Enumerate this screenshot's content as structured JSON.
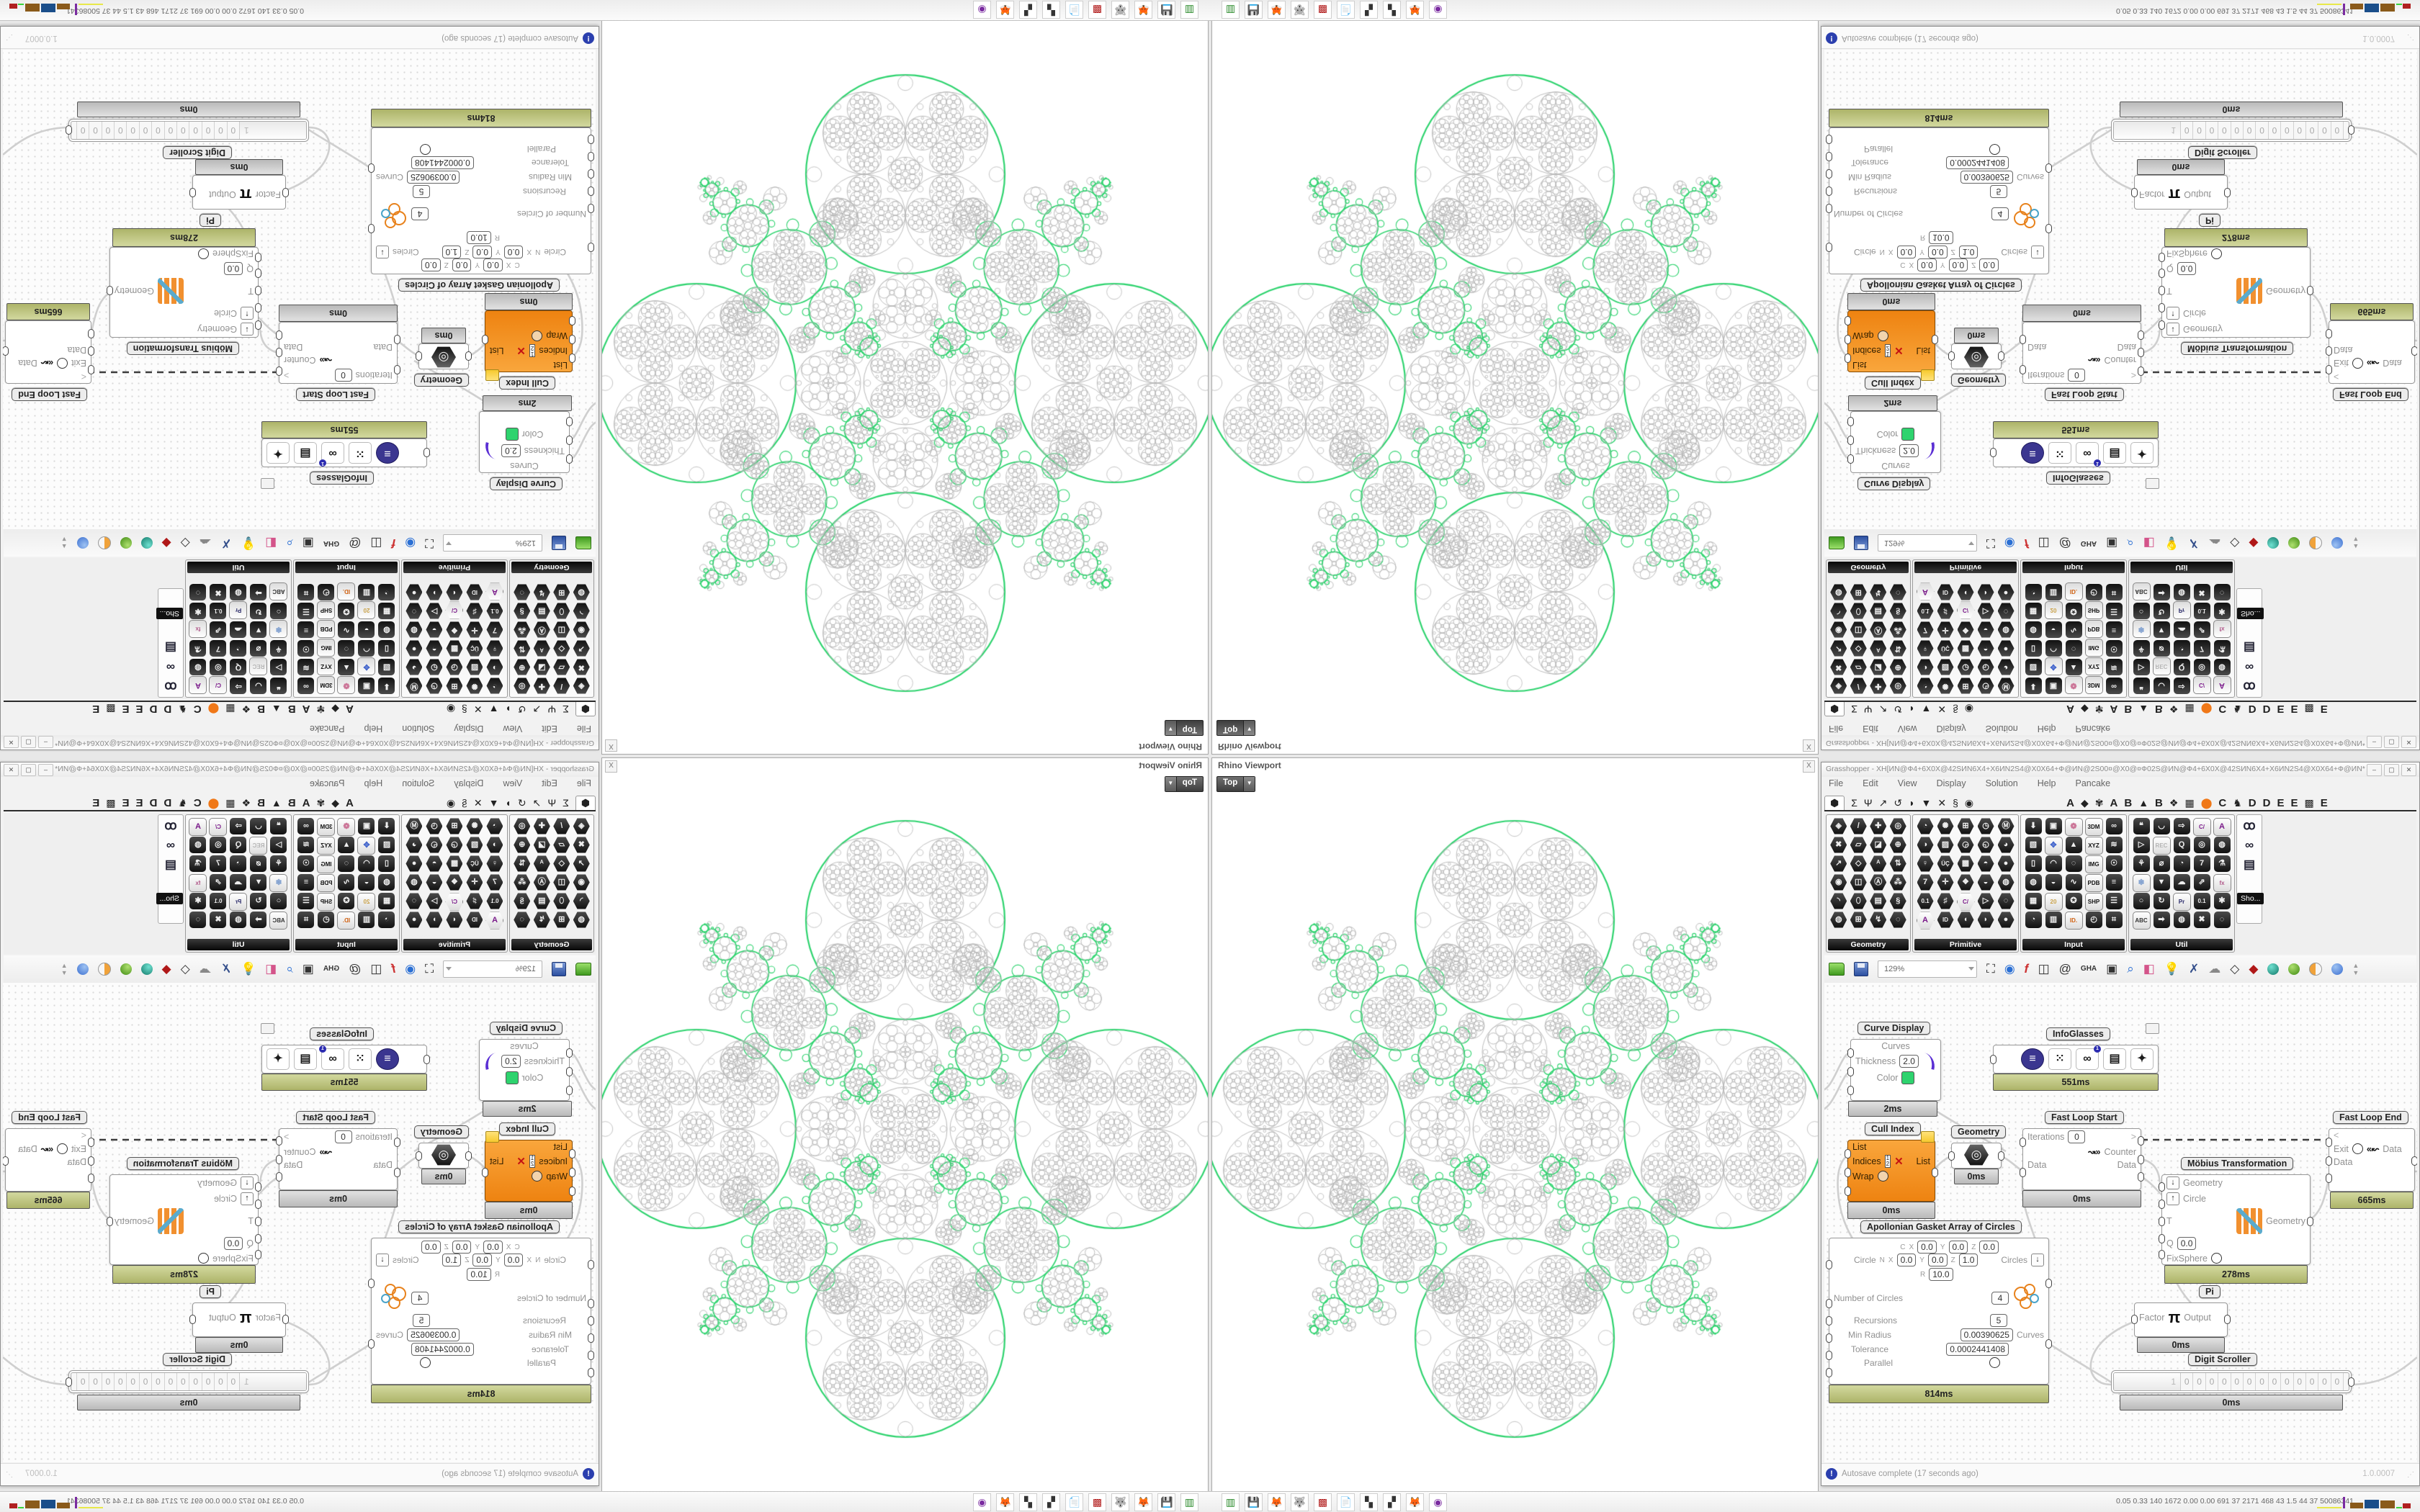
{
  "viewport": {
    "title": "Rhino Viewport",
    "view_button": "Top",
    "close_glyph": "X"
  },
  "gh": {
    "title": "Grasshopper - XH[ИN@Ф4+6X0X@42SИN6X4+X6ИN2S4@X0X64+Ф@ИN@2S00¤@X0@¤Ф02S@ИN@Ф4+6X0X@42SИN6X4+X6ИN2S4@X0X64+Ф@ИN*",
    "min": "–",
    "max": "▢",
    "close": "✕",
    "menu": [
      "File",
      "Edit",
      "View",
      "Display",
      "Solution",
      "Help",
      "Pancake"
    ],
    "tabs": [
      "⬢",
      "Σ",
      "Ψ",
      "↗",
      "↺",
      "◗",
      "▼",
      "✕",
      "§",
      "◉",
      "A",
      "◆",
      "✾",
      "A",
      "B",
      "▲",
      "B",
      "❖",
      "▦",
      "⬤",
      "C",
      "♞",
      "D",
      "D",
      "E",
      "E",
      "▩",
      "E"
    ],
    "palettes": [
      "Geometry",
      "Primitive",
      "Input",
      "Util"
    ],
    "palette_tooltip": "Sho...",
    "zoom_level": "129%",
    "autosave": "Autosave complete (17 seconds ago)",
    "version": "1.0.0007"
  },
  "nodes": {
    "curve_display": {
      "label": "Curve Display",
      "in1": "Curves",
      "in2": "Thickness",
      "thickness": "2.0",
      "in3": "Color",
      "runtime": "2ms"
    },
    "infoglasses": {
      "label": "InfoGlasses",
      "runtime": "551ms",
      "badge": "1"
    },
    "fast_loop_start": {
      "label": "Fast Loop Start",
      "in1": "Iterations",
      "iterations": "0",
      "in2": "Data",
      "arrow": ">",
      "out1": "Counter",
      "out2": "Data",
      "runtime": "0ms"
    },
    "fast_loop_end": {
      "label": "Fast Loop End",
      "arrow": "<",
      "in1": "Exit",
      "in2": "Data",
      "out1": "Data",
      "runtime": "665ms"
    },
    "cull_index": {
      "label": "Cull Index",
      "in1": "List",
      "in2": "Indices",
      "in3": "Wrap",
      "out1": "List",
      "runtime": "0ms"
    },
    "geometry": {
      "label": "Geometry",
      "runtime": "0ms"
    },
    "mobius": {
      "label": "Möbius Transformation",
      "in1": "Geometry",
      "in2": "Circle",
      "in3": "T",
      "in4": "Q",
      "q": "0.0",
      "in5": "FixSphere",
      "out1": "Geometry",
      "runtime": "278ms"
    },
    "pi": {
      "label": "Pi",
      "in1": "Factor",
      "glyph": "π",
      "out1": "Output",
      "runtime": "0ms"
    },
    "digit_scroller": {
      "label": "Digit Scroller",
      "sign": "1",
      "digits": [
        "0",
        "0",
        "0",
        "0",
        "0",
        "0",
        "0",
        "0",
        "0",
        "0",
        "0",
        "0",
        "0"
      ],
      "runtime": "0ms"
    },
    "apollonian": {
      "label": "Apollonian Gasket Array of Circles",
      "row_circle": "Circle",
      "row_c": "C",
      "row_n": "N",
      "ax": "X",
      "ay": "Y",
      "az": "Z",
      "ar": "R",
      "c_x": "0.0",
      "c_y": "0.0",
      "c_z": "0.0",
      "n_x": "0.0",
      "n_y": "0.0",
      "n_z": "1.0",
      "r_val": "10.0",
      "p1": "Number of Circles",
      "v1": "4",
      "p2": "Recursions",
      "v2": "5",
      "p3": "Min Radius",
      "v3": "0.00390625",
      "p4": "Tolerance",
      "v4": "0.0002441408",
      "p5": "Parallel",
      "out1": "Circles",
      "out2": "Curves",
      "runtime": "814ms"
    }
  },
  "taskbar": {
    "stats": "0.05 0.33 140 1672 0.00 0.00 691 37 2171 468 43 1.5 44 37 50086341"
  },
  "colors": {
    "curve_green": "#2ed36e",
    "gasket_gray": "#b6b6b6",
    "runtime_olive": "#b8bf7e",
    "node_orange": "#f79b2e"
  }
}
